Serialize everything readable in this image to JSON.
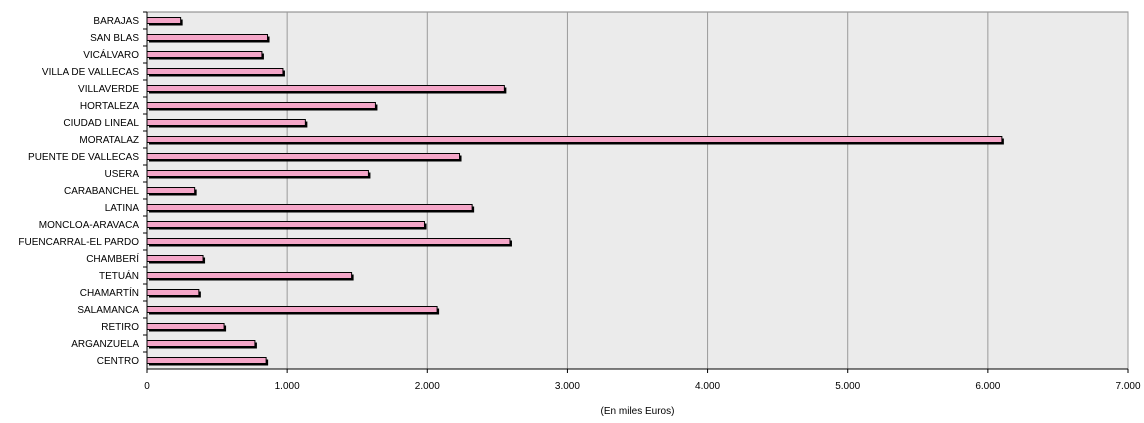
{
  "chart_data": {
    "type": "bar",
    "orientation": "horizontal",
    "categories": [
      "BARAJAS",
      "SAN BLAS",
      "VICÁLVARO",
      "VILLA DE VALLECAS",
      "VILLAVERDE",
      "HORTALEZA",
      "CIUDAD LINEAL",
      "MORATALAZ",
      "PUENTE DE VALLECAS",
      "USERA",
      "CARABANCHEL",
      "LATINA",
      "MONCLOA-ARAVACA",
      "FUENCARRAL-EL PARDO",
      "CHAMBERÍ",
      "TETUÁN",
      "CHAMARTÍN",
      "SALAMANCA",
      "RETIRO",
      "ARGANZUELA",
      "CENTRO"
    ],
    "values": [
      240,
      860,
      820,
      970,
      2550,
      1630,
      1130,
      6100,
      2230,
      1580,
      340,
      2320,
      1980,
      2590,
      400,
      1460,
      370,
      2070,
      550,
      770,
      850
    ],
    "xlabel": "(En miles Euros)",
    "xlim": [
      0,
      7000
    ],
    "xticks": [
      0,
      1000,
      2000,
      3000,
      4000,
      5000,
      6000,
      7000
    ],
    "xtick_labels": [
      "0",
      "1.000",
      "2.000",
      "3.000",
      "4.000",
      "5.000",
      "6.000",
      "7.000"
    ],
    "grid": "vertical",
    "legend": "none",
    "colors": {
      "bar_fill": "#f4a6c8",
      "bar_shadow": "#000000",
      "plot_bg": "#ebebeb",
      "grid": "#9a9a9a",
      "axis": "#808080"
    }
  }
}
